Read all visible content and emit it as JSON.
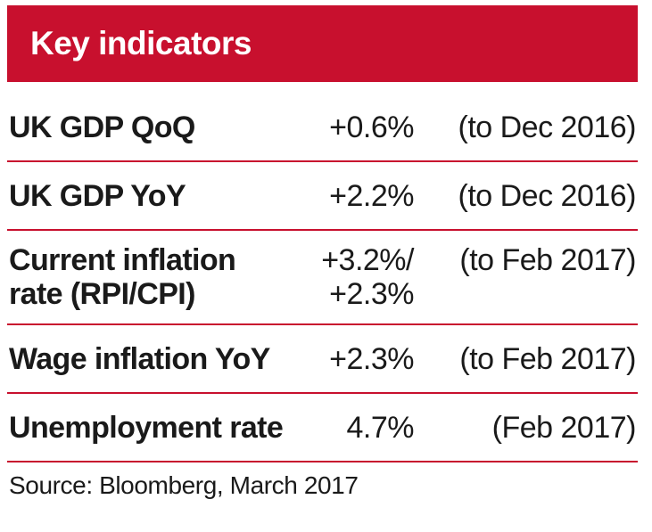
{
  "header": {
    "title": "Key indicators",
    "background_color": "#c8102e"
  },
  "rows": [
    {
      "label": "UK GDP QoQ",
      "value": "+0.6%",
      "period": "(to Dec 2016)"
    },
    {
      "label": "UK GDP YoY",
      "value": "+2.2%",
      "period": "(to Dec 2016)"
    },
    {
      "label_line1": "Current inflation",
      "label_line2": "rate (RPI/CPI)",
      "value_line1": "+3.2%/",
      "value_line2": "+2.3%",
      "period": "(to Feb 2017)"
    },
    {
      "label": "Wage inflation YoY",
      "value": "+2.3%",
      "period": "(to Feb 2017)"
    },
    {
      "label": "Unemployment rate",
      "value": "4.7%",
      "period": "(Feb 2017)"
    }
  ],
  "source": "Source: Bloomberg, March 2017",
  "divider_color": "#c8102e"
}
